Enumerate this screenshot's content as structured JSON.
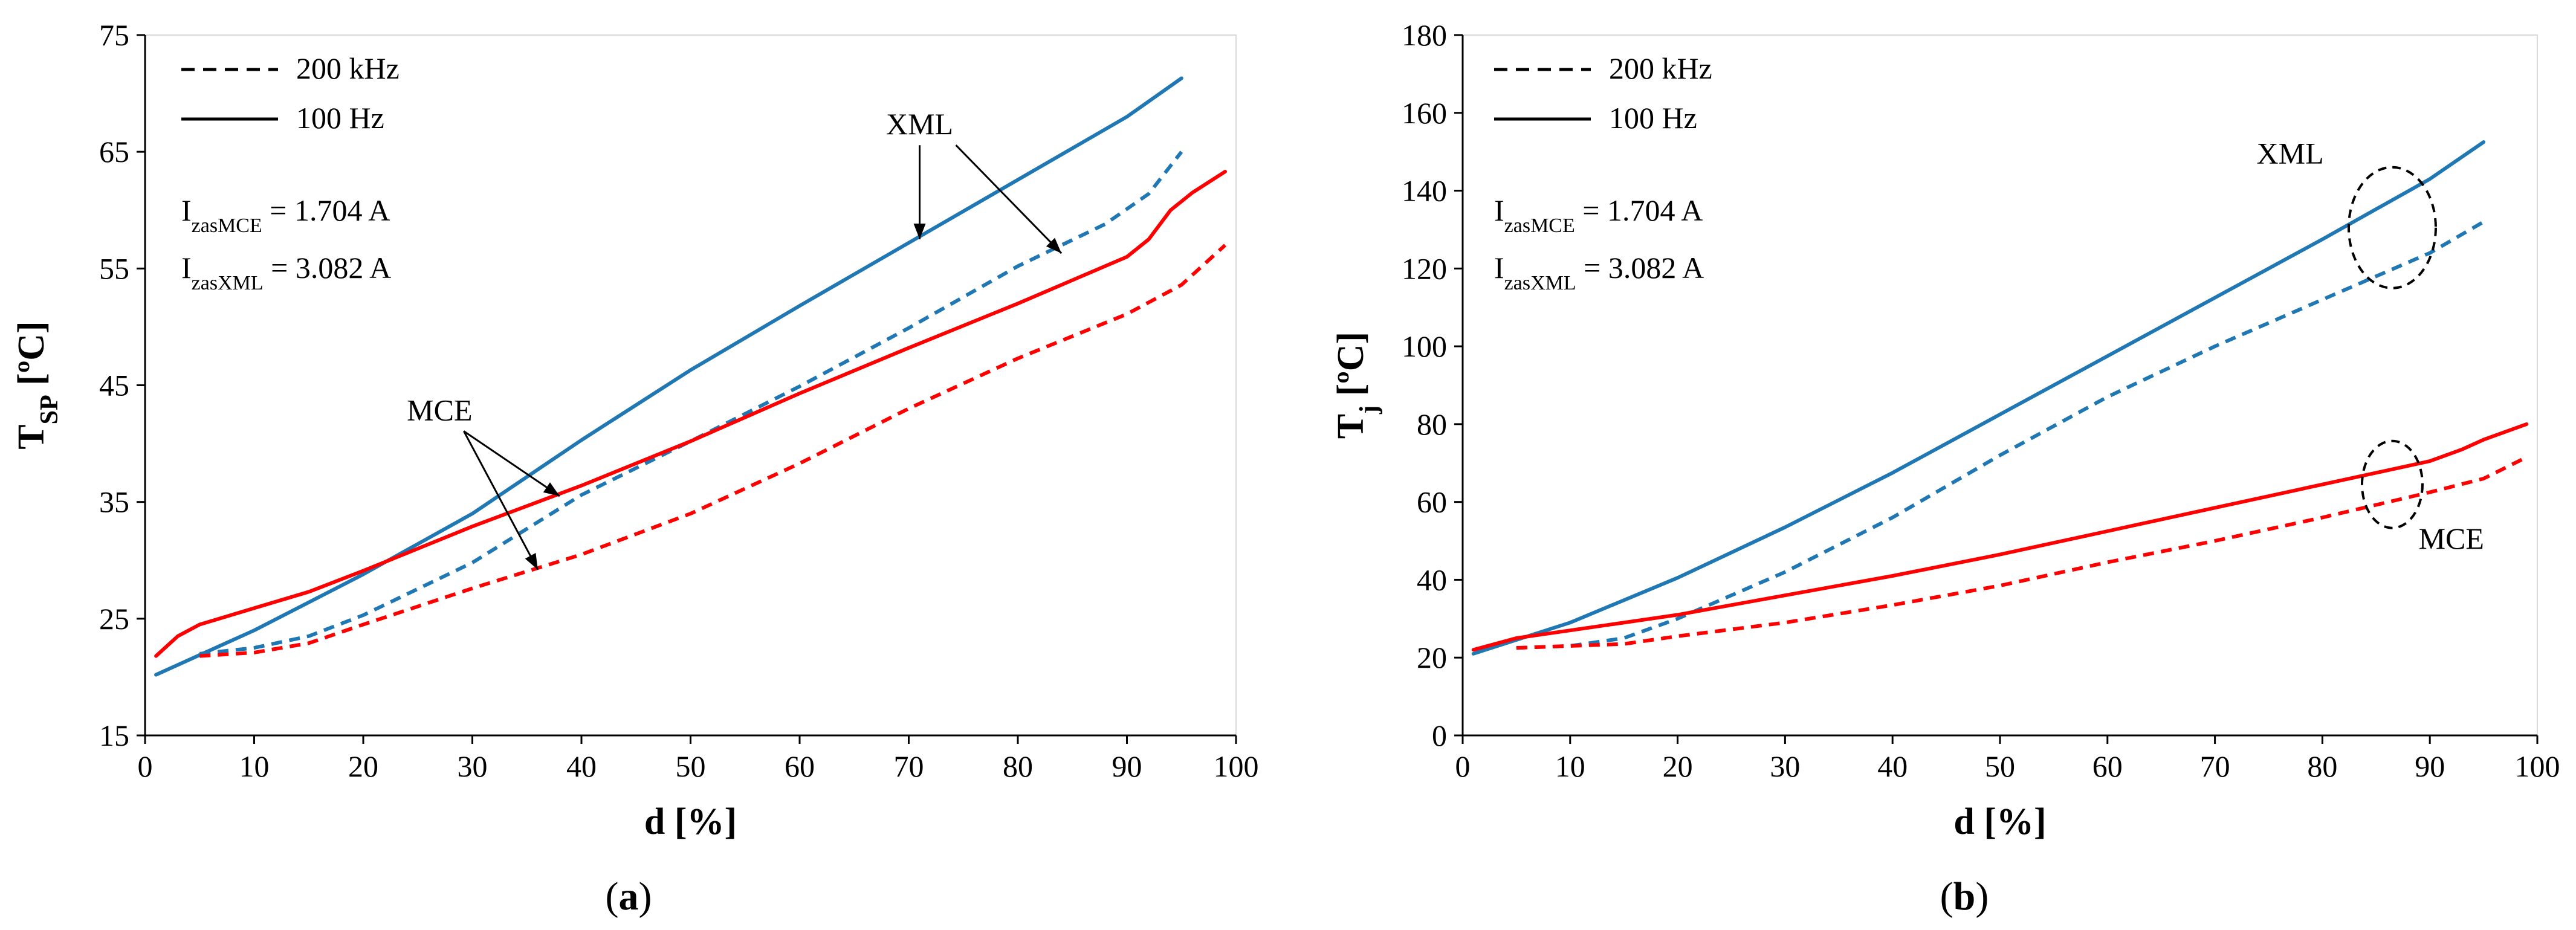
{
  "chart_data": [
    {
      "type": "line",
      "panel_label": "a",
      "xlabel": "d [%]",
      "ylabel": {
        "base": "T",
        "sub": "SP",
        "unit": " [ºC]"
      },
      "xlim": [
        0,
        100
      ],
      "ylim": [
        15,
        75
      ],
      "xticks": [
        "0",
        "10",
        "20",
        "30",
        "40",
        "50",
        "60",
        "70",
        "80",
        "90",
        "100"
      ],
      "yticks": [
        "15",
        "25",
        "35",
        "45",
        "55",
        "65",
        "75"
      ],
      "legend": [
        {
          "label": "200 kHz",
          "style": "dashed"
        },
        {
          "label": "100 Hz",
          "style": "solid"
        }
      ],
      "notes": [
        {
          "base": "I",
          "sub": "zasMCE",
          "rest": " = 1.704 A"
        },
        {
          "base": "I",
          "sub": "zasXML",
          "rest": " = 3.082 A"
        }
      ],
      "annotations": [
        {
          "text": "XML",
          "at": [
            71,
            66.5
          ],
          "arrows_to": [
            [
              71,
              57.5
            ],
            [
              84,
              56.3
            ]
          ]
        },
        {
          "text": "MCE",
          "at": [
            27,
            42
          ],
          "arrows_to": [
            [
              38,
              35.5
            ],
            [
              36,
              29.2
            ]
          ]
        }
      ],
      "series": [
        {
          "name": "XML 100 Hz",
          "style": "solid",
          "color": "#1f77b4",
          "x": [
            1,
            10,
            20,
            30,
            40,
            50,
            60,
            70,
            80,
            90,
            95
          ],
          "y": [
            20.2,
            24.0,
            28.8,
            34.0,
            40.3,
            46.3,
            51.8,
            57.2,
            62.6,
            68.0,
            71.3
          ]
        },
        {
          "name": "XML 200 kHz",
          "style": "dashed",
          "color": "#1f77b4",
          "x": [
            5,
            10,
            15,
            20,
            30,
            40,
            50,
            60,
            70,
            80,
            88,
            92,
            95
          ],
          "y": [
            22.0,
            22.5,
            23.5,
            25.3,
            29.8,
            35.6,
            40.2,
            44.9,
            49.9,
            55.2,
            58.8,
            61.4,
            65.0
          ]
        },
        {
          "name": "MCE 100 Hz",
          "style": "solid",
          "color": "#ff0000",
          "x": [
            1,
            3,
            5,
            10,
            15,
            20,
            30,
            40,
            50,
            60,
            70,
            80,
            90,
            92,
            94,
            96,
            99
          ],
          "y": [
            21.8,
            23.5,
            24.5,
            25.9,
            27.3,
            29.1,
            32.9,
            36.4,
            40.2,
            44.3,
            48.2,
            52.0,
            56.0,
            57.5,
            60.0,
            61.5,
            63.3
          ]
        },
        {
          "name": "MCE 200 kHz",
          "style": "dashed",
          "color": "#ff0000",
          "x": [
            5,
            10,
            15,
            20,
            30,
            40,
            50,
            60,
            70,
            80,
            90,
            95,
            99
          ],
          "y": [
            21.8,
            22.1,
            22.9,
            24.5,
            27.6,
            30.5,
            34.0,
            38.3,
            43.0,
            47.3,
            51.1,
            53.6,
            57.0
          ]
        }
      ]
    },
    {
      "type": "line",
      "panel_label": "b",
      "xlabel": "d [%]",
      "ylabel": {
        "base": "T",
        "sub": "j",
        "unit": " [ºC]"
      },
      "xlim": [
        0,
        100
      ],
      "ylim": [
        0,
        180
      ],
      "xticks": [
        "0",
        "10",
        "20",
        "30",
        "40",
        "50",
        "60",
        "70",
        "80",
        "90",
        "100"
      ],
      "yticks": [
        "0",
        "20",
        "40",
        "60",
        "80",
        "100",
        "120",
        "140",
        "160",
        "180"
      ],
      "legend": [
        {
          "label": "200 kHz",
          "style": "dashed"
        },
        {
          "label": "100 Hz",
          "style": "solid"
        }
      ],
      "notes": [
        {
          "base": "I",
          "sub": "zasMCE",
          "rest": " = 1.704 A"
        },
        {
          "base": "I",
          "sub": "zasXML",
          "rest": " = 3.082 A"
        }
      ],
      "annotations": [
        {
          "text": "XML",
          "at": [
            77,
            147
          ],
          "ellipse_center": [
            86.5,
            130.5
          ]
        },
        {
          "text": "MCE",
          "at": [
            92,
            48
          ],
          "ellipse_center": [
            86.5,
            64.5
          ]
        }
      ],
      "series": [
        {
          "name": "XML 100 Hz",
          "style": "solid",
          "color": "#1f77b4",
          "x": [
            1,
            10,
            20,
            30,
            40,
            50,
            60,
            70,
            80,
            90,
            95
          ],
          "y": [
            21.0,
            29.0,
            40.5,
            53.5,
            67.5,
            82.5,
            97.5,
            112.5,
            127.5,
            143.0,
            152.5
          ]
        },
        {
          "name": "XML 200 kHz",
          "style": "dashed",
          "color": "#1f77b4",
          "x": [
            5,
            10,
            15,
            20,
            30,
            40,
            50,
            60,
            70,
            80,
            90,
            95
          ],
          "y": [
            22.5,
            23.0,
            25.0,
            30.0,
            42.0,
            56.0,
            72.0,
            87.0,
            100.0,
            112.0,
            124.0,
            132.0
          ]
        },
        {
          "name": "MCE 100 Hz",
          "style": "solid",
          "color": "#ff0000",
          "x": [
            1,
            5,
            10,
            20,
            30,
            40,
            50,
            60,
            70,
            80,
            90,
            93,
            95,
            99
          ],
          "y": [
            22.0,
            25.0,
            27.0,
            31.0,
            36.0,
            41.0,
            46.5,
            52.5,
            58.5,
            64.5,
            70.5,
            73.5,
            76.0,
            80.0
          ]
        },
        {
          "name": "MCE 200 kHz",
          "style": "dashed",
          "color": "#ff0000",
          "x": [
            5,
            10,
            15,
            20,
            30,
            40,
            50,
            60,
            70,
            80,
            90,
            95,
            99
          ],
          "y": [
            22.5,
            23.0,
            23.5,
            25.5,
            29.0,
            33.5,
            38.5,
            44.5,
            50.0,
            56.0,
            62.5,
            66.0,
            71.5
          ]
        }
      ]
    }
  ]
}
